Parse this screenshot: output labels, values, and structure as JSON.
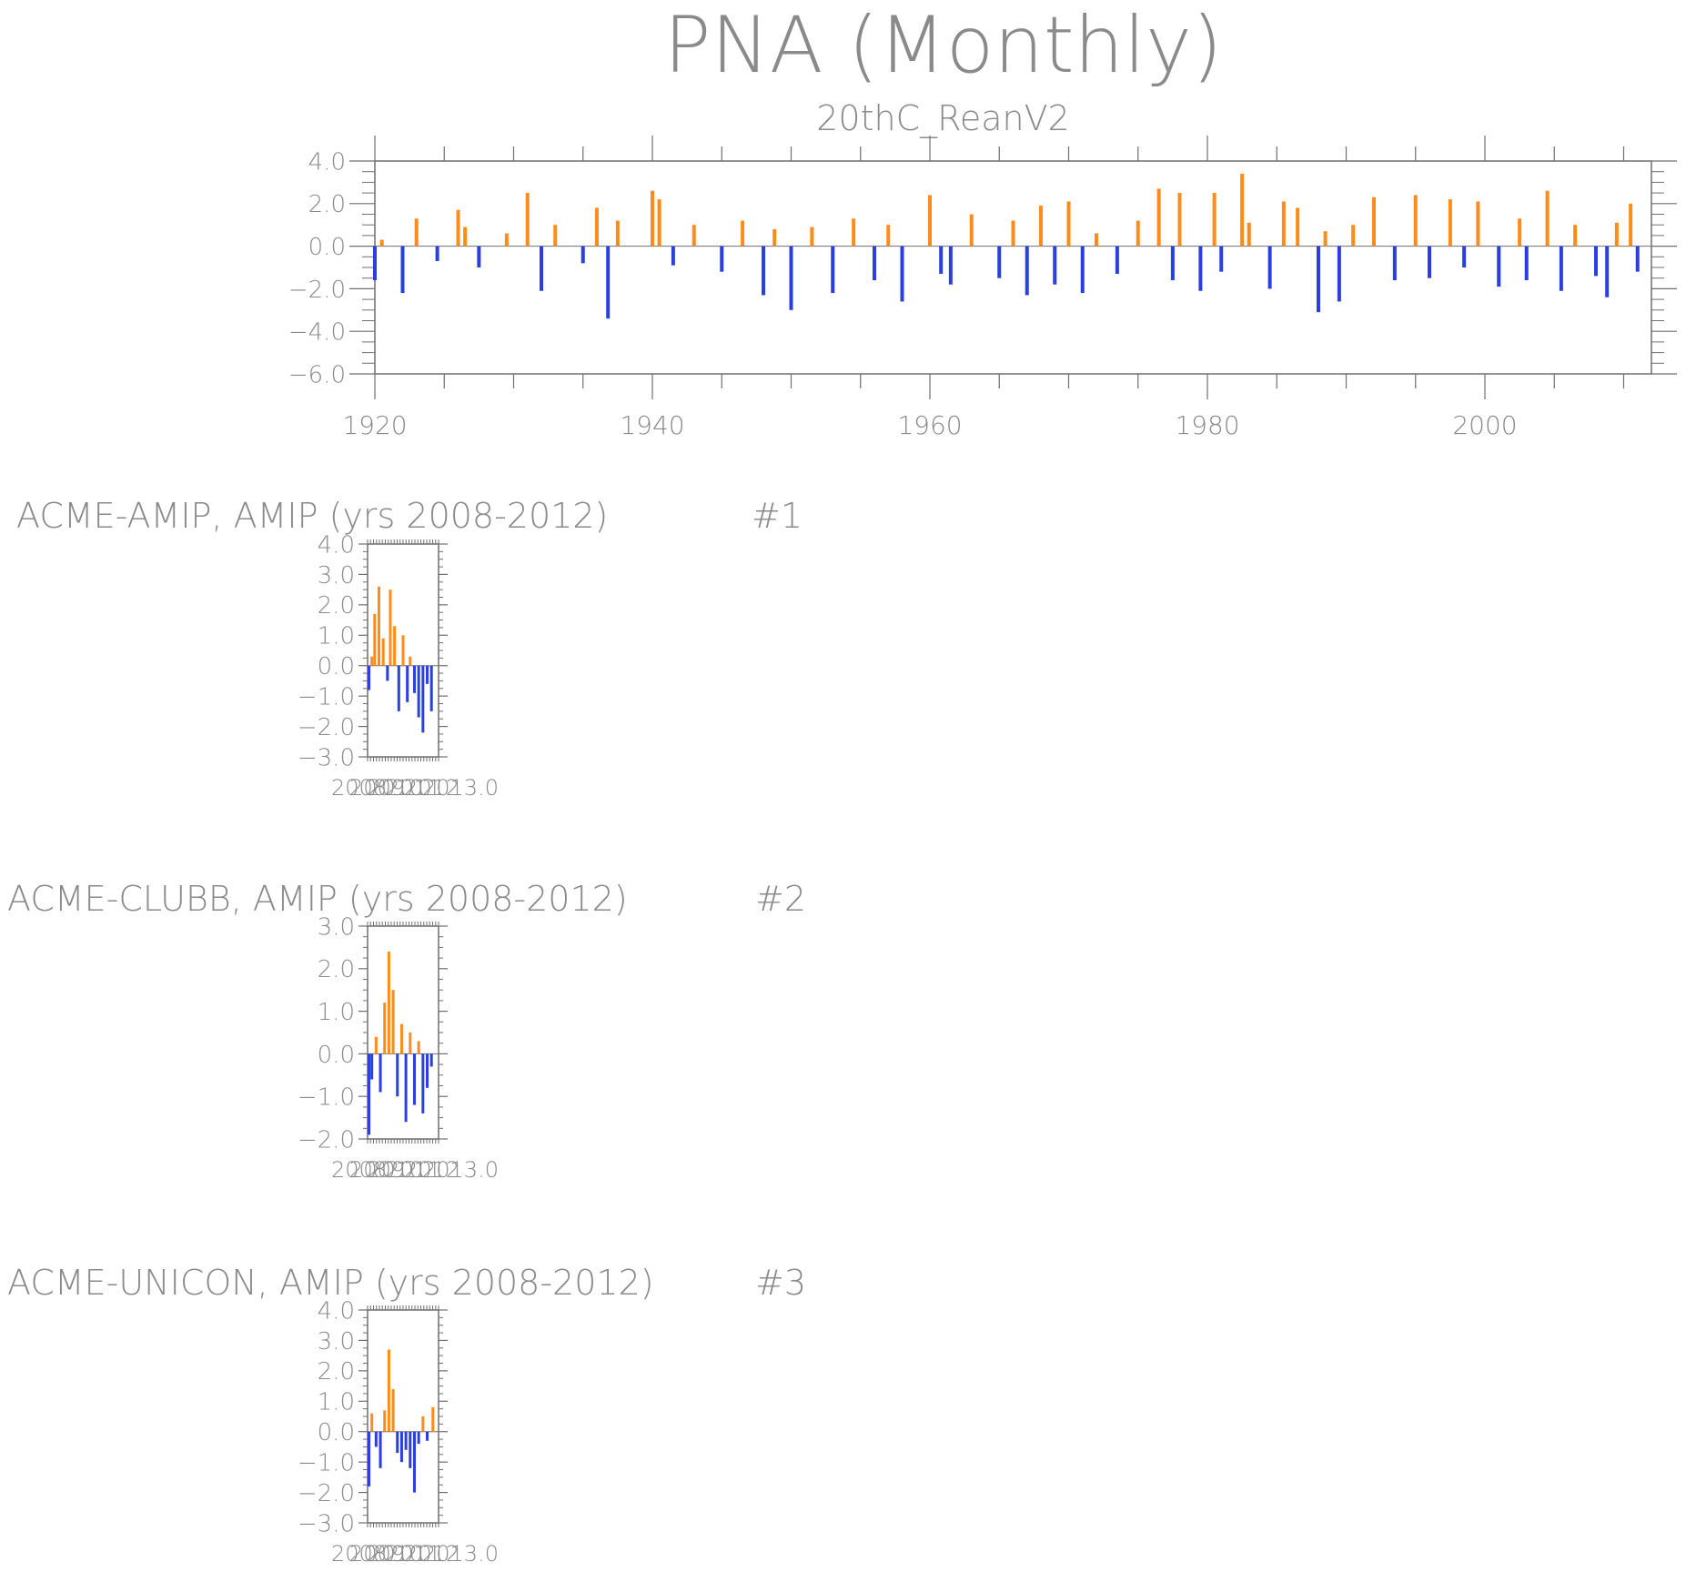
{
  "header": {
    "title": "PNA (Monthly)",
    "subtitle": "20thC_ReanV2"
  },
  "panels": [
    {
      "title": "ACME-AMIP, AMIP (yrs 2008-2012)",
      "number": "#1"
    },
    {
      "title": "ACME-CLUBB, AMIP (yrs 2008-2012)",
      "number": "#2"
    },
    {
      "title": "ACME-UNICON, AMIP (yrs 2008-2012)",
      "number": "#3"
    }
  ],
  "colors": {
    "positive": "#ff8c1a",
    "negative": "#2a3fe0",
    "axis": "#6f6f6f",
    "text": "#8a8a8a"
  },
  "chart_data": [
    {
      "type": "bar",
      "title": "PNA (Monthly)",
      "subtitle": "20thC_ReanV2",
      "x_range": [
        1920,
        2012
      ],
      "ylim": [
        -6.0,
        4.0
      ],
      "x_ticks": [
        1920,
        1940,
        1960,
        1980,
        2000
      ],
      "y_ticks": [
        -6.0,
        -4.0,
        -2.0,
        0.0,
        2.0,
        4.0
      ],
      "series": [
        {
          "x": [
            1920.0,
            1920.5,
            1922.0,
            1923.0,
            1924.5,
            1926.0,
            1926.5,
            1927.5,
            1929.5,
            1931.0,
            1932.0,
            1933.0,
            1935.0,
            1936.0,
            1936.8,
            1937.5,
            1940.0,
            1940.5,
            1941.5,
            1943.0,
            1945.0,
            1946.5,
            1948.0,
            1948.8,
            1950.0,
            1951.5,
            1953.0,
            1954.5,
            1956.0,
            1957.0,
            1958.0,
            1960.0,
            1960.8,
            1961.5,
            1963.0,
            1965.0,
            1966.0,
            1967.0,
            1968.0,
            1969.0,
            1970.0,
            1971.0,
            1972.0,
            1973.5,
            1975.0,
            1976.5,
            1977.5,
            1978.0,
            1979.5,
            1980.5,
            1981.0,
            1982.5,
            1983.0,
            1984.5,
            1985.5,
            1986.5,
            1988.0,
            1988.5,
            1989.5,
            1990.5,
            1992.0,
            1993.5,
            1995.0,
            1996.0,
            1997.5,
            1998.5,
            1999.5,
            2001.0,
            2002.5,
            2003.0,
            2004.5,
            2005.5,
            2006.5,
            2008.0,
            2008.8,
            2009.5,
            2010.5,
            2011.0
          ],
          "values": [
            -1.6,
            0.3,
            -2.2,
            1.3,
            -0.7,
            1.7,
            0.9,
            -1.0,
            0.6,
            2.5,
            -2.1,
            1.0,
            -0.8,
            1.8,
            -3.4,
            1.2,
            2.6,
            2.2,
            -0.9,
            1.0,
            -1.2,
            1.2,
            -2.3,
            0.8,
            -3.0,
            0.9,
            -2.2,
            1.3,
            -1.6,
            1.0,
            -2.6,
            2.4,
            -1.3,
            -1.8,
            1.5,
            -1.5,
            1.2,
            -2.3,
            1.9,
            -1.8,
            2.1,
            -2.2,
            0.6,
            -1.3,
            1.2,
            2.7,
            -1.6,
            2.5,
            -2.1,
            2.5,
            -1.2,
            3.4,
            1.1,
            -2.0,
            2.1,
            1.8,
            -3.1,
            0.7,
            -2.6,
            1.0,
            2.3,
            -1.6,
            2.4,
            -1.5,
            2.2,
            -1.0,
            2.1,
            -1.9,
            1.3,
            -1.6,
            2.6,
            -2.1,
            1.0,
            -1.4,
            -2.4,
            1.1,
            2.0,
            -1.2
          ]
        }
      ]
    },
    {
      "type": "bar",
      "title": "ACME-AMIP, AMIP (yrs 2008-2012)",
      "x_range": [
        2008,
        2013
      ],
      "ylim": [
        -3.0,
        4.0
      ],
      "x_tick_labels": [
        "2008",
        "2009",
        "2010",
        "2011",
        "2012",
        "2013.0"
      ],
      "y_ticks": [
        -3.0,
        -2.0,
        -1.0,
        0.0,
        1.0,
        2.0,
        3.0,
        4.0
      ],
      "series": [
        {
          "x": [
            2008.1,
            2008.3,
            2008.5,
            2008.8,
            2009.1,
            2009.4,
            2009.6,
            2009.9,
            2010.2,
            2010.5,
            2010.8,
            2011.0,
            2011.3,
            2011.6,
            2011.9,
            2012.2,
            2012.5
          ],
          "values": [
            -0.8,
            0.3,
            1.7,
            2.6,
            0.9,
            -0.5,
            2.5,
            1.3,
            -1.5,
            1.0,
            -1.2,
            0.3,
            -0.9,
            -1.7,
            -2.2,
            -0.6,
            -1.5
          ]
        }
      ]
    },
    {
      "type": "bar",
      "title": "ACME-CLUBB, AMIP (yrs 2008-2012)",
      "x_range": [
        2008,
        2013
      ],
      "ylim": [
        -2.0,
        3.0
      ],
      "x_tick_labels": [
        "2008",
        "2009",
        "2010",
        "2011",
        "2012",
        "2013.0"
      ],
      "y_ticks": [
        -2.0,
        -1.0,
        0.0,
        1.0,
        2.0,
        3.0
      ],
      "series": [
        {
          "x": [
            2008.1,
            2008.3,
            2008.6,
            2008.9,
            2009.2,
            2009.5,
            2009.8,
            2010.1,
            2010.4,
            2010.7,
            2011.0,
            2011.3,
            2011.6,
            2011.9,
            2012.2,
            2012.5
          ],
          "values": [
            -1.9,
            -0.6,
            0.4,
            -0.9,
            1.2,
            2.4,
            1.5,
            -1.0,
            0.7,
            -1.6,
            0.5,
            -1.2,
            0.3,
            -1.4,
            -0.8,
            -0.3
          ]
        }
      ]
    },
    {
      "type": "bar",
      "title": "ACME-UNICON, AMIP (yrs 2008-2012)",
      "x_range": [
        2008,
        2013
      ],
      "ylim": [
        -3.0,
        4.0
      ],
      "x_tick_labels": [
        "2008",
        "2009",
        "2010",
        "2011",
        "2012",
        "2013.0"
      ],
      "y_ticks": [
        -3.0,
        -2.0,
        -1.0,
        0.0,
        1.0,
        2.0,
        3.0,
        4.0
      ],
      "series": [
        {
          "x": [
            2008.1,
            2008.3,
            2008.6,
            2008.9,
            2009.2,
            2009.5,
            2009.8,
            2010.1,
            2010.4,
            2010.7,
            2011.0,
            2011.3,
            2011.6,
            2011.9,
            2012.2,
            2012.6
          ],
          "values": [
            -1.8,
            0.6,
            -0.5,
            -1.2,
            0.7,
            2.7,
            1.4,
            -0.7,
            -1.0,
            -0.6,
            -1.2,
            -2.0,
            -0.4,
            0.5,
            -0.3,
            0.8
          ]
        }
      ]
    }
  ]
}
